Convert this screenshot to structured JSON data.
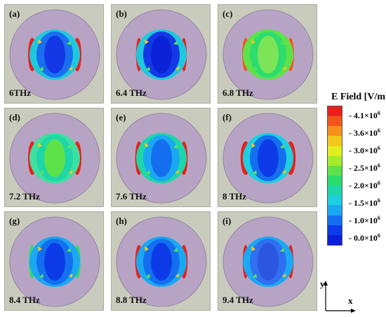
{
  "panels": [
    {
      "label": "(a)",
      "freq": "6THz"
    },
    {
      "label": "(b)",
      "freq": "6.4 THz"
    },
    {
      "label": "(c)",
      "freq": "6.8 THz"
    },
    {
      "label": "(d)",
      "freq": "7.2 THz"
    },
    {
      "label": "(e)",
      "freq": "7.6 THz"
    },
    {
      "label": "(f)",
      "freq": "8 THz"
    },
    {
      "label": "(g)",
      "freq": "8.4 THz"
    },
    {
      "label": "(h)",
      "freq": "8.8 THz"
    },
    {
      "label": "(i)",
      "freq": "9.4 THz"
    }
  ],
  "colorbar": {
    "title": "E Field [V/m]",
    "ticks": [
      {
        "mant": "4.1",
        "exp": "6"
      },
      {
        "mant": "3.6",
        "exp": "6"
      },
      {
        "mant": "3.0",
        "exp": "6"
      },
      {
        "mant": "2.5",
        "exp": "6"
      },
      {
        "mant": "2.0",
        "exp": "6"
      },
      {
        "mant": "1.5",
        "exp": "6"
      },
      {
        "mant": "1.0",
        "exp": "6"
      },
      {
        "mant": "0.0",
        "exp": "6"
      }
    ],
    "colors": [
      "#e8201a",
      "#f2561c",
      "#f5901c",
      "#f1c81c",
      "#e2ee1e",
      "#a6ec2a",
      "#5ee24a",
      "#2ddc6e",
      "#1ed6a8",
      "#1ecfe0",
      "#1aa8f2",
      "#146ff0",
      "#0e3be8",
      "#0a1fd8"
    ]
  },
  "axes": {
    "x": "x",
    "y": "y"
  },
  "colors": {
    "background": "#c9cbbd",
    "ring": "#b7a4c4",
    "ring_edge": "#8c7aa0"
  }
}
